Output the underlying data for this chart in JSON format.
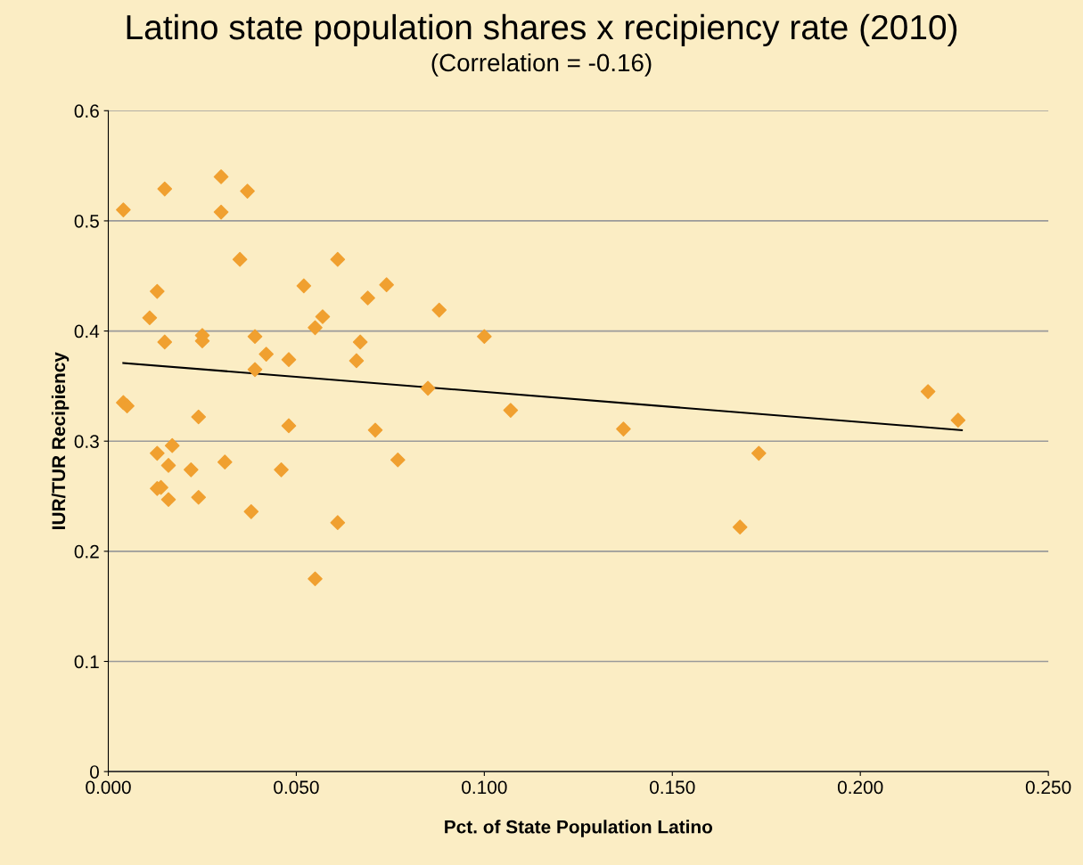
{
  "chart_data": {
    "type": "scatter",
    "title": "Latino state population shares x recipiency rate (2010)",
    "subtitle": "(Correlation = -0.16)",
    "xlabel": "Pct. of State Population Latino",
    "ylabel": "IUR/TUR Recipiency",
    "xlim": [
      0,
      0.25
    ],
    "ylim": [
      0,
      0.6
    ],
    "xticks": [
      {
        "value": 0,
        "label": "0.000"
      },
      {
        "value": 0.05,
        "label": "0.050"
      },
      {
        "value": 0.1,
        "label": "0.100"
      },
      {
        "value": 0.15,
        "label": "0.150"
      },
      {
        "value": 0.2,
        "label": "0.200"
      },
      {
        "value": 0.25,
        "label": "0.250"
      }
    ],
    "yticks": [
      0,
      0.1,
      0.2,
      0.3,
      0.4,
      0.5,
      0.6
    ],
    "grid": "y",
    "marker": "diamond",
    "series": [
      {
        "color": "#f0a030",
        "x": [
          0.004,
          0.015,
          0.03,
          0.037,
          0.03,
          0.035,
          0.061,
          0.052,
          0.074,
          0.013,
          0.069,
          0.088,
          0.011,
          0.057,
          0.055,
          0.025,
          0.025,
          0.015,
          0.039,
          0.1,
          0.067,
          0.042,
          0.048,
          0.066,
          0.039,
          0.085,
          0.218,
          0.226,
          0.004,
          0.005,
          0.107,
          0.024,
          0.048,
          0.071,
          0.137,
          0.017,
          0.013,
          0.173,
          0.077,
          0.031,
          0.016,
          0.022,
          0.046,
          0.013,
          0.014,
          0.016,
          0.024,
          0.038,
          0.061,
          0.168,
          0.055
        ],
        "values": [
          0.51,
          0.529,
          0.54,
          0.527,
          0.508,
          0.465,
          0.465,
          0.441,
          0.442,
          0.436,
          0.43,
          0.419,
          0.412,
          0.413,
          0.403,
          0.396,
          0.391,
          0.39,
          0.395,
          0.395,
          0.39,
          0.379,
          0.374,
          0.373,
          0.365,
          0.348,
          0.345,
          0.319,
          0.335,
          0.332,
          0.328,
          0.322,
          0.314,
          0.31,
          0.311,
          0.296,
          0.289,
          0.289,
          0.283,
          0.281,
          0.278,
          0.274,
          0.274,
          0.257,
          0.258,
          0.247,
          0.249,
          0.236,
          0.226,
          0.222,
          0.175
        ]
      },
      {
        "type": "line",
        "color": "#000000",
        "marker": "none",
        "x": [
          0.004,
          0.227
        ],
        "values": [
          0.371,
          0.31
        ]
      }
    ]
  }
}
